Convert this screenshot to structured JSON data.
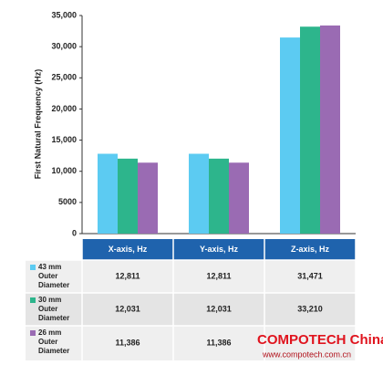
{
  "chart_data": {
    "type": "bar",
    "y_label": "First Natural Frequency (Hz)",
    "categories": [
      "X-axis, Hz",
      "Y-axis, Hz",
      "Z-axis, Hz"
    ],
    "series": [
      {
        "name": "43 mm Outer Diameter",
        "color": "#5ccbf2",
        "values": [
          12811,
          12811,
          31471
        ],
        "value_labels": [
          "12,811",
          "12,811",
          "31,471"
        ]
      },
      {
        "name": "30 mm Outer Diameter",
        "color": "#2db58c",
        "values": [
          12031,
          12031,
          33210
        ],
        "value_labels": [
          "12,031",
          "12,031",
          "33,210"
        ]
      },
      {
        "name": "26 mm Outer Diameter",
        "color": "#9a6bb3",
        "values": [
          11386,
          11386,
          33400
        ],
        "value_labels": [
          "11,386",
          "11,386",
          null
        ]
      }
    ],
    "ylim": [
      0,
      35000
    ],
    "yticks": [
      0,
      {
        "value": 5000,
        "label": "5000"
      },
      {
        "value": 10000,
        "label": "10,000"
      },
      {
        "value": 15000,
        "label": "15,000"
      },
      {
        "value": 20000,
        "label": "20,000"
      },
      {
        "value": 25000,
        "label": "25,000"
      },
      {
        "value": 30000,
        "label": "30,000"
      },
      {
        "value": 35000,
        "label": "35,000"
      }
    ],
    "grid": false
  },
  "watermark": {
    "brand": "COMPOTECH China",
    "url": "www.compotech.com.cn"
  }
}
